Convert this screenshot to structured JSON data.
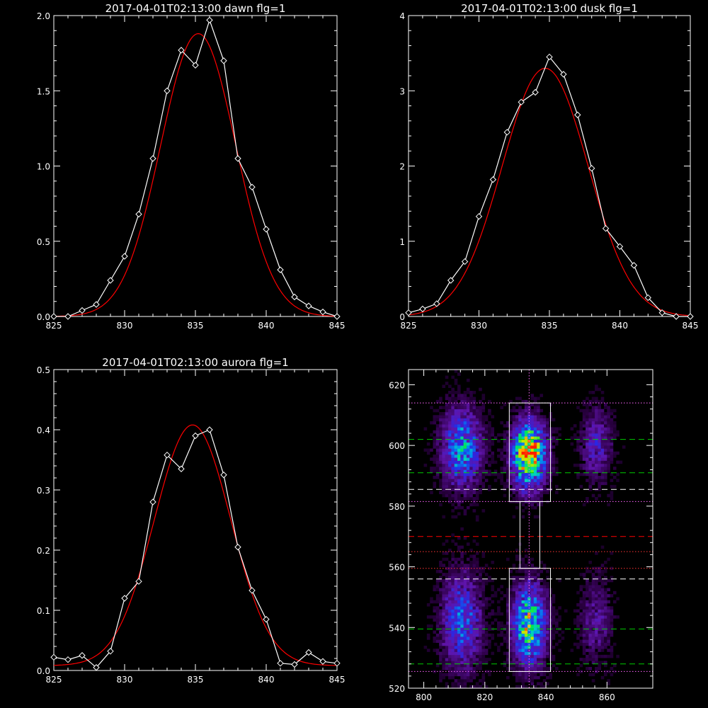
{
  "colors": {
    "background": "#000000",
    "axes": "#ffffff",
    "data_line": "#ffffff",
    "fit_line": "#ff0000",
    "green_dashed": "#00cc00",
    "red_dashed": "#ff0000",
    "white_dashed": "#ffffff",
    "magenta_dotted": "#ff66ff",
    "red_dotted": "#ff3333"
  },
  "chart_data": [
    {
      "type": "line",
      "title": "2017-04-01T02:13:00 dawn flg=1",
      "xlim": [
        825,
        845
      ],
      "ylim": [
        0,
        2.0
      ],
      "xticks": [
        "825",
        "830",
        "835",
        "840",
        "845"
      ],
      "yticks": [
        "0.0",
        "0.5",
        "1.0",
        "1.5",
        "2.0"
      ],
      "ytick_values": [
        0,
        0.5,
        1.0,
        1.5,
        2.0
      ],
      "x": [
        825,
        826,
        827,
        828,
        829,
        830,
        831,
        832,
        833,
        834,
        835,
        836,
        837,
        838,
        839,
        840,
        841,
        842,
        843,
        844,
        845
      ],
      "series": [
        {
          "role": "measured",
          "marker": "diamond",
          "values": [
            0.0,
            0.0,
            0.04,
            0.08,
            0.24,
            0.4,
            0.68,
            1.05,
            1.5,
            1.77,
            1.67,
            1.97,
            1.7,
            1.05,
            0.86,
            0.58,
            0.31,
            0.13,
            0.07,
            0.03,
            0.0
          ]
        },
        {
          "role": "gaussian-fit",
          "amplitude": 1.88,
          "center": 835.2,
          "sigma": 2.65,
          "offset": 0.0
        }
      ]
    },
    {
      "type": "line",
      "title": "2017-04-01T02:13:00 dusk flg=1",
      "xlim": [
        825,
        845
      ],
      "ylim": [
        0,
        4
      ],
      "xticks": [
        "825",
        "830",
        "835",
        "840",
        "845"
      ],
      "yticks": [
        "0",
        "1",
        "2",
        "3",
        "4"
      ],
      "ytick_values": [
        0,
        1,
        2,
        3,
        4
      ],
      "x": [
        825,
        826,
        827,
        828,
        829,
        830,
        831,
        832,
        833,
        834,
        835,
        836,
        837,
        838,
        839,
        840,
        841,
        842,
        843,
        844,
        845
      ],
      "series": [
        {
          "role": "measured",
          "marker": "diamond",
          "values": [
            0.05,
            0.1,
            0.17,
            0.48,
            0.73,
            1.33,
            1.82,
            2.45,
            2.85,
            2.98,
            3.45,
            3.22,
            2.68,
            1.97,
            1.17,
            0.93,
            0.68,
            0.25,
            0.05,
            0.0,
            0.0
          ]
        },
        {
          "role": "gaussian-fit",
          "amplitude": 3.3,
          "center": 834.7,
          "sigma": 3.05,
          "offset": 0.0
        }
      ]
    },
    {
      "type": "line",
      "title": "2017-04-01T02:13:00 aurora flg=1",
      "xlim": [
        825,
        845
      ],
      "ylim": [
        0,
        0.5
      ],
      "xticks": [
        "825",
        "830",
        "835",
        "840",
        "845"
      ],
      "yticks": [
        "0.0",
        "0.1",
        "0.2",
        "0.3",
        "0.4",
        "0.5"
      ],
      "ytick_values": [
        0,
        0.1,
        0.2,
        0.3,
        0.4,
        0.5
      ],
      "x": [
        825,
        826,
        827,
        828,
        829,
        830,
        831,
        832,
        833,
        834,
        835,
        836,
        837,
        838,
        839,
        840,
        841,
        842,
        843,
        844,
        845
      ],
      "series": [
        {
          "role": "measured",
          "marker": "diamond",
          "values": [
            0.022,
            0.018,
            0.025,
            0.005,
            0.032,
            0.12,
            0.148,
            0.28,
            0.358,
            0.335,
            0.39,
            0.4,
            0.325,
            0.205,
            0.133,
            0.085,
            0.012,
            0.01,
            0.03,
            0.015,
            0.012
          ]
        },
        {
          "role": "gaussian-fit",
          "amplitude": 0.4,
          "center": 834.8,
          "sigma": 2.7,
          "offset": 0.008
        }
      ]
    },
    {
      "type": "heatmap",
      "title": "",
      "xlim": [
        795,
        875
      ],
      "ylim": [
        520,
        625
      ],
      "xticks": [
        "800",
        "820",
        "840",
        "860"
      ],
      "xtick_values": [
        800,
        820,
        840,
        860
      ],
      "yticks": [
        "520",
        "540",
        "560",
        "580",
        "600",
        "620"
      ],
      "ytick_values": [
        520,
        540,
        560,
        580,
        600,
        620
      ],
      "colormap": "rainbow-on-black",
      "emission_columns": [
        {
          "center_x": 812.5,
          "width": 4.5,
          "regions": [
            {
              "y_center": 599,
              "y_sigma": 9,
              "peak": 0.55
            },
            {
              "y_center": 542,
              "y_sigma": 11,
              "peak": 0.45
            }
          ]
        },
        {
          "center_x": 834.5,
          "width": 3.8,
          "regions": [
            {
              "y_center": 597,
              "y_sigma": 7.5,
              "peak": 1.0
            },
            {
              "y_center": 541,
              "y_sigma": 9,
              "peak": 0.75
            }
          ]
        },
        {
          "center_x": 856.5,
          "width": 3.5,
          "regions": [
            {
              "y_center": 600,
              "y_sigma": 8,
              "peak": 0.3
            },
            {
              "y_center": 542,
              "y_sigma": 10,
              "peak": 0.22
            }
          ]
        }
      ],
      "boxes": [
        {
          "x0": 828,
          "x1": 841.5,
          "y0": 581.5,
          "y1": 614
        },
        {
          "x0": 828,
          "x1": 841.5,
          "y0": 525.5,
          "y1": 559.5
        },
        {
          "x0": 831.5,
          "x1": 838,
          "y0": 559.5,
          "y1": 581.5
        }
      ],
      "vertical_line": {
        "x": 834.5,
        "style": "dotted"
      },
      "horizontal_lines": [
        {
          "y": 614,
          "color": "magenta",
          "style": "dotted"
        },
        {
          "y": 602,
          "color": "green",
          "style": "dashed"
        },
        {
          "y": 591,
          "color": "green",
          "style": "dashed"
        },
        {
          "y": 585.5,
          "color": "white",
          "style": "dashed"
        },
        {
          "y": 581.5,
          "color": "magenta",
          "style": "dotted"
        },
        {
          "y": 570,
          "color": "red",
          "style": "dashed"
        },
        {
          "y": 565,
          "color": "red",
          "style": "dotted"
        },
        {
          "y": 559.5,
          "color": "red",
          "style": "dotted"
        },
        {
          "y": 556,
          "color": "white",
          "style": "dashed"
        },
        {
          "y": 539.5,
          "color": "green",
          "style": "dashed"
        },
        {
          "y": 528,
          "color": "green",
          "style": "dashed"
        },
        {
          "y": 525.5,
          "color": "magenta",
          "style": "dotted"
        }
      ]
    }
  ]
}
